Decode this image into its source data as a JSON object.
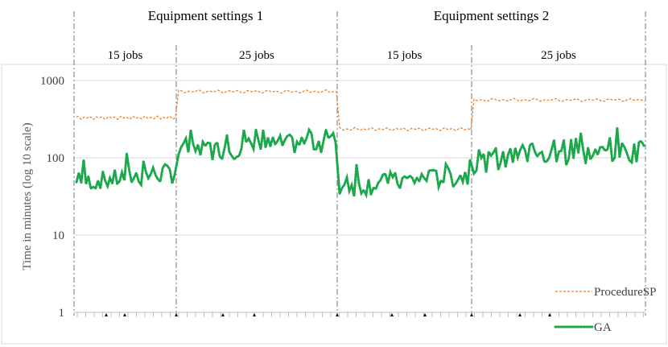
{
  "chart_data": {
    "type": "line",
    "yscale": "log10",
    "ylim": [
      1,
      1000
    ],
    "yticks": [
      1,
      10,
      100,
      1000
    ],
    "yticklabels": [
      "1",
      "10",
      "100",
      "1000"
    ],
    "ylabel": "Time in minutes (log 10 scale)",
    "xlabel": "",
    "grid": true,
    "legend_position": "bottom-right",
    "groups": [
      {
        "label": "Equipment settings 1",
        "subgroups": [
          {
            "label": "15 jobs",
            "n": 60
          },
          {
            "label": "25 jobs",
            "n": 97
          }
        ]
      },
      {
        "label": "Equipment settings 2",
        "subgroups": [
          {
            "label": "15 jobs",
            "n": 81
          },
          {
            "label": "25 jobs",
            "n": 105
          }
        ]
      }
    ],
    "series": [
      {
        "name": "ProcedureSP",
        "color": "#f07f28",
        "style": "dashed",
        "segment_levels": [
          330,
          720,
          235,
          560
        ]
      },
      {
        "name": "GA",
        "color": "#1aa84a",
        "style": "dotted",
        "segment_ranges": [
          [
            40,
            120
          ],
          [
            60,
            230
          ],
          [
            30,
            110
          ],
          [
            50,
            320
          ]
        ],
        "segment_typical": [
          55,
          140,
          50,
          105
        ]
      }
    ]
  }
}
